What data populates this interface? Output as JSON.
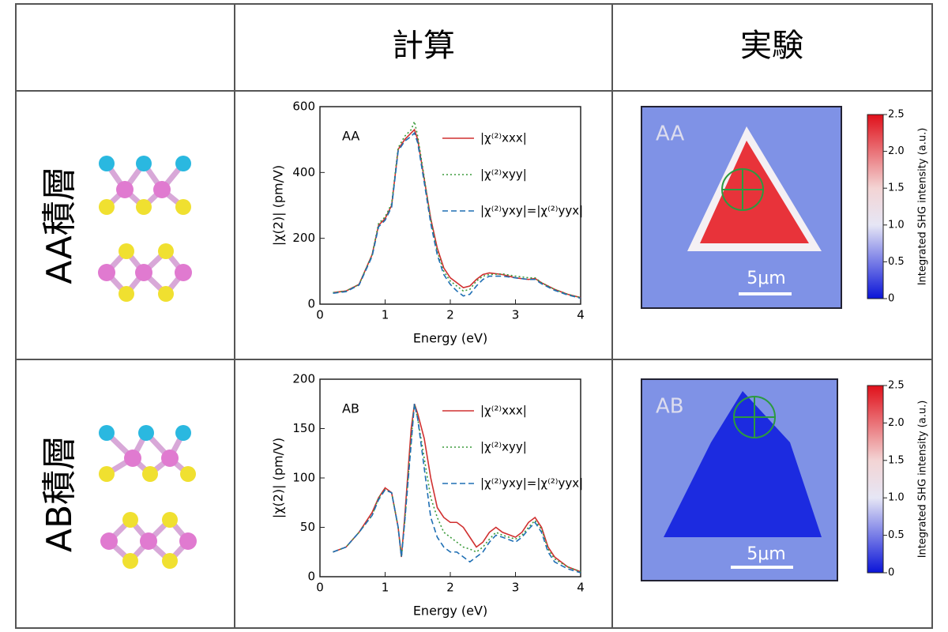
{
  "table": {
    "headers": [
      "計算",
      "実験"
    ],
    "rows": [
      "AA積層",
      "AB積層"
    ]
  },
  "chart_data": [
    {
      "type": "line",
      "annotation": "AA",
      "xlabel": "Energy (eV)",
      "ylabel": "|χ(2)| (pm/V)",
      "xlim": [
        0,
        4
      ],
      "ylim": [
        0,
        600
      ],
      "xticks": [
        0,
        1,
        2,
        3,
        4
      ],
      "yticks": [
        0,
        200,
        400,
        600
      ],
      "legend": "upper right",
      "x": [
        0.2,
        0.4,
        0.6,
        0.8,
        0.9,
        1.0,
        1.1,
        1.2,
        1.3,
        1.4,
        1.45,
        1.5,
        1.6,
        1.7,
        1.8,
        1.9,
        2.0,
        2.1,
        2.2,
        2.3,
        2.4,
        2.5,
        2.6,
        2.8,
        3.0,
        3.2,
        3.3,
        3.4,
        3.6,
        3.8,
        4.0
      ],
      "series": [
        {
          "name": "|χ⁽²⁾xxx|",
          "color": "#d03030",
          "dash": "solid",
          "values": [
            35,
            40,
            60,
            150,
            240,
            260,
            300,
            470,
            500,
            520,
            530,
            500,
            380,
            260,
            170,
            110,
            80,
            65,
            50,
            55,
            75,
            90,
            95,
            90,
            80,
            75,
            78,
            65,
            45,
            30,
            20
          ]
        },
        {
          "name": "|χ⁽²⁾xyy|",
          "color": "#3a9a3a",
          "dash": "dotted",
          "values": [
            35,
            40,
            60,
            150,
            245,
            265,
            305,
            475,
            510,
            530,
            555,
            510,
            385,
            255,
            160,
            100,
            70,
            55,
            40,
            45,
            70,
            85,
            90,
            92,
            85,
            80,
            80,
            65,
            45,
            30,
            20
          ]
        },
        {
          "name": "|χ⁽²⁾yxy|=|χ⁽²⁾yyx|",
          "color": "#1f6fb4",
          "dash": "dashed",
          "values": [
            33,
            38,
            58,
            145,
            235,
            255,
            295,
            465,
            495,
            510,
            520,
            490,
            370,
            245,
            150,
            90,
            60,
            40,
            25,
            30,
            55,
            75,
            85,
            85,
            80,
            75,
            75,
            62,
            42,
            28,
            18
          ]
        }
      ]
    },
    {
      "type": "line",
      "annotation": "AB",
      "xlabel": "Energy (eV)",
      "ylabel": "|χ(2)| (pm/V)",
      "xlim": [
        0,
        4
      ],
      "ylim": [
        0,
        200
      ],
      "xticks": [
        0,
        1,
        2,
        3,
        4
      ],
      "yticks": [
        0,
        50,
        100,
        150,
        200
      ],
      "legend": "upper right",
      "x": [
        0.2,
        0.4,
        0.6,
        0.8,
        0.9,
        1.0,
        1.1,
        1.2,
        1.25,
        1.3,
        1.4,
        1.45,
        1.5,
        1.6,
        1.7,
        1.8,
        1.9,
        2.0,
        2.1,
        2.2,
        2.3,
        2.4,
        2.5,
        2.6,
        2.7,
        2.8,
        3.0,
        3.1,
        3.2,
        3.3,
        3.4,
        3.5,
        3.6,
        3.8,
        4.0
      ],
      "series": [
        {
          "name": "|χ⁽²⁾xxx|",
          "color": "#d03030",
          "dash": "solid",
          "values": [
            25,
            30,
            45,
            65,
            80,
            90,
            85,
            50,
            20,
            60,
            150,
            175,
            165,
            140,
            100,
            70,
            60,
            55,
            55,
            50,
            40,
            30,
            35,
            45,
            50,
            45,
            40,
            45,
            55,
            60,
            50,
            30,
            20,
            10,
            5
          ]
        },
        {
          "name": "|χ⁽²⁾xyy|",
          "color": "#3a9a3a",
          "dash": "dotted",
          "values": [
            25,
            30,
            45,
            62,
            80,
            88,
            85,
            50,
            20,
            55,
            140,
            175,
            160,
            120,
            80,
            60,
            45,
            40,
            35,
            30,
            28,
            25,
            30,
            38,
            45,
            42,
            38,
            42,
            50,
            57,
            48,
            28,
            18,
            10,
            5
          ]
        },
        {
          "name": "|χ⁽²⁾yxy|=|χ⁽²⁾yyx|",
          "color": "#1f6fb4",
          "dash": "dashed",
          "values": [
            25,
            30,
            45,
            62,
            78,
            88,
            85,
            50,
            20,
            55,
            135,
            175,
            160,
            110,
            60,
            40,
            30,
            25,
            25,
            20,
            15,
            20,
            25,
            35,
            42,
            40,
            35,
            40,
            48,
            55,
            45,
            25,
            15,
            8,
            4
          ]
        }
      ]
    }
  ],
  "maps": [
    {
      "label": "AA",
      "scale_bar": "5μm"
    },
    {
      "label": "AB",
      "scale_bar": "5μm"
    }
  ],
  "colorbar": {
    "label": "Integrated SHG intensity (a.u.)",
    "lim": [
      0,
      2.5
    ],
    "ticks": [
      0,
      0.5,
      {
        "value": 1,
        "label": "1.0"
      },
      1.5,
      {
        "value": 2,
        "label": "2.0"
      },
      2.5
    ]
  }
}
